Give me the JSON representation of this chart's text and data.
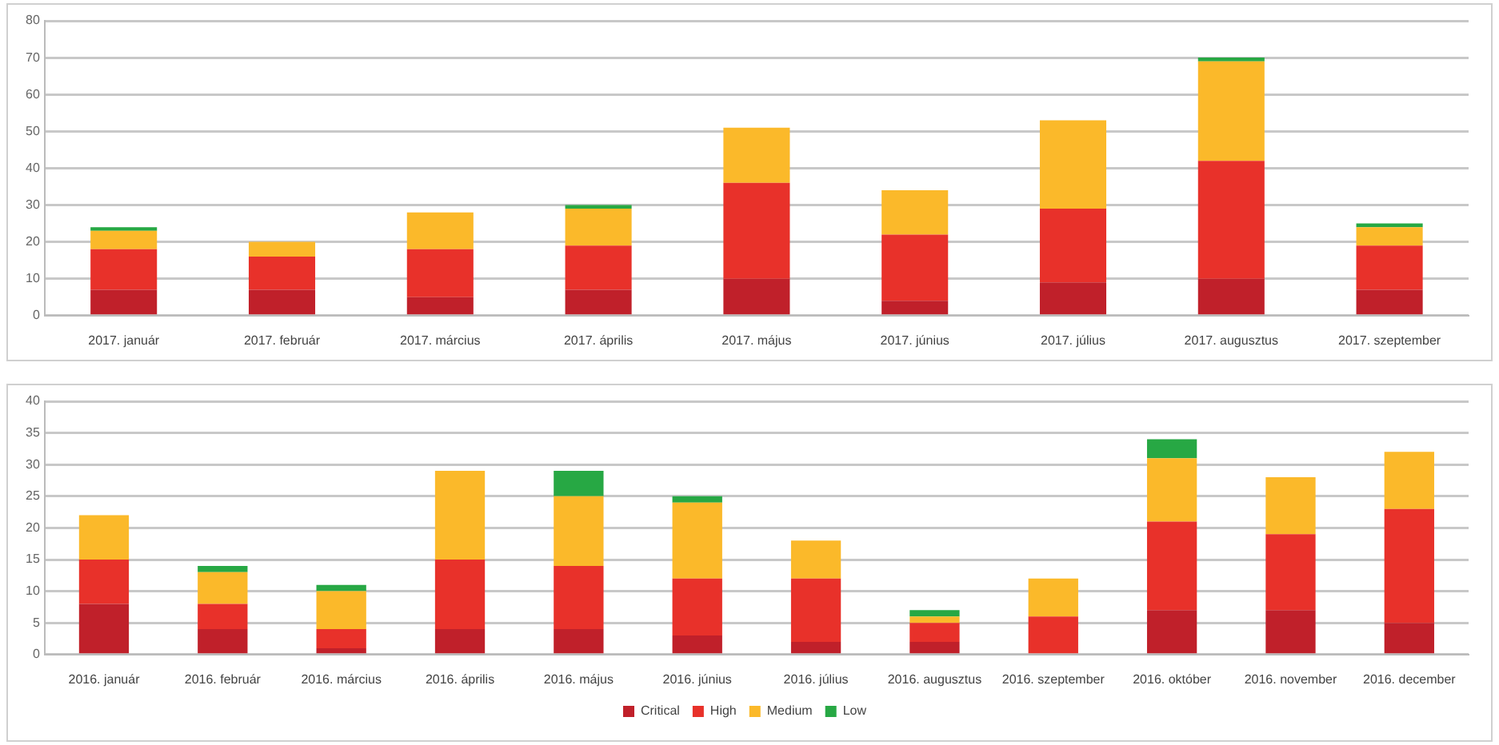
{
  "chart_data": [
    {
      "type": "bar",
      "stacked": true,
      "categories": [
        "2017. január",
        "2017. február",
        "2017. március",
        "2017. április",
        "2017. május",
        "2017. június",
        "2017. július",
        "2017. augusztus",
        "2017. szeptember"
      ],
      "series": [
        {
          "color": "#c0202a",
          "values": [
            7,
            7,
            5,
            7,
            10,
            4,
            9,
            10,
            7
          ]
        },
        {
          "color": "#e8312a",
          "values": [
            11,
            9,
            13,
            12,
            26,
            18,
            20,
            32,
            12
          ]
        },
        {
          "color": "#fbb92a",
          "values": [
            5,
            4,
            10,
            10,
            15,
            12,
            24,
            27,
            5
          ]
        },
        {
          "color": "#27a844",
          "values": [
            1,
            0,
            0,
            1,
            0,
            0,
            0,
            1,
            1
          ]
        }
      ],
      "ylim": [
        0,
        80
      ],
      "yticks": [
        0,
        10,
        20,
        30,
        40,
        50,
        60,
        70,
        80
      ],
      "grid": "y",
      "legend": false
    },
    {
      "type": "bar",
      "stacked": true,
      "categories": [
        "2016. január",
        "2016. február",
        "2016. március",
        "2016. április",
        "2016. május",
        "2016. június",
        "2016. július",
        "2016. augusztus",
        "2016. szeptember",
        "2016. október",
        "2016. november",
        "2016. december"
      ],
      "series": [
        {
          "name": "Critical",
          "color": "#c0202a",
          "values": [
            8,
            4,
            1,
            4,
            4,
            3,
            2,
            2,
            0,
            7,
            7,
            5
          ]
        },
        {
          "name": "High",
          "color": "#e8312a",
          "values": [
            7,
            4,
            3,
            11,
            10,
            9,
            10,
            3,
            6,
            14,
            12,
            18
          ]
        },
        {
          "name": "Medium",
          "color": "#fbb92a",
          "values": [
            7,
            5,
            6,
            14,
            11,
            12,
            6,
            1,
            6,
            10,
            9,
            9
          ]
        },
        {
          "name": "Low",
          "color": "#27a844",
          "values": [
            0,
            1,
            1,
            0,
            4,
            1,
            0,
            1,
            0,
            3,
            0,
            0
          ]
        }
      ],
      "ylim": [
        0,
        40
      ],
      "yticks": [
        0,
        5,
        10,
        15,
        20,
        25,
        30,
        35,
        40
      ],
      "grid": "y",
      "legend": "bottom"
    }
  ]
}
